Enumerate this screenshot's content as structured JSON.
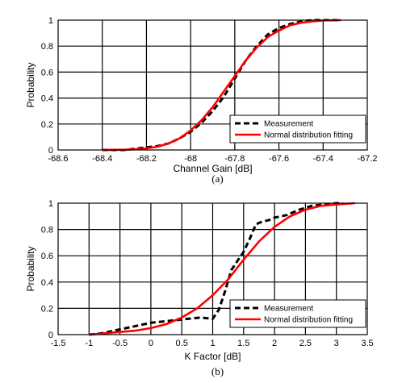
{
  "chart_data": [
    {
      "type": "line",
      "panel": "a",
      "caption": "(a)",
      "xlabel": "Channel Gain [dB]",
      "ylabel": "Probability",
      "xlim": [
        -68.6,
        -67.2
      ],
      "ylim": [
        0,
        1
      ],
      "xticks": [
        "-68.6",
        "-68.4",
        "-68.2",
        "-68",
        "-67.8",
        "-67.6",
        "-67.4",
        "-67.2"
      ],
      "xtick_values": [
        -68.6,
        -68.4,
        -68.2,
        -68.0,
        -67.8,
        -67.6,
        -67.4,
        -67.2
      ],
      "yticks": [
        "0",
        "0.2",
        "0.4",
        "0.6",
        "0.8",
        "1"
      ],
      "ytick_values": [
        0,
        0.2,
        0.4,
        0.6,
        0.8,
        1
      ],
      "grid": true,
      "legend_position": "lower-right",
      "series": [
        {
          "name": "Measurement",
          "style": "dashed",
          "color": "#000000",
          "x": [
            -68.4,
            -68.3,
            -68.25,
            -68.2,
            -68.15,
            -68.1,
            -68.05,
            -68.0,
            -67.95,
            -67.9,
            -67.85,
            -67.8,
            -67.75,
            -67.7,
            -67.65,
            -67.6,
            -67.55,
            -67.5,
            -67.45,
            -67.4,
            -67.32
          ],
          "y": [
            0,
            0.0,
            0.01,
            0.02,
            0.03,
            0.05,
            0.09,
            0.14,
            0.21,
            0.3,
            0.41,
            0.55,
            0.69,
            0.8,
            0.89,
            0.94,
            0.97,
            0.99,
            1.0,
            1.0,
            1.0
          ]
        },
        {
          "name": "Normal distribution fitting",
          "style": "solid",
          "color": "#ff0000",
          "x": [
            -68.4,
            -68.3,
            -68.25,
            -68.2,
            -68.15,
            -68.1,
            -68.05,
            -68.0,
            -67.95,
            -67.9,
            -67.85,
            -67.8,
            -67.75,
            -67.7,
            -67.65,
            -67.6,
            -67.55,
            -67.5,
            -67.45,
            -67.4,
            -67.32
          ],
          "y": [
            0.0,
            0.002,
            0.005,
            0.012,
            0.025,
            0.05,
            0.09,
            0.15,
            0.23,
            0.33,
            0.45,
            0.57,
            0.69,
            0.79,
            0.87,
            0.92,
            0.96,
            0.98,
            0.99,
            0.997,
            1.0
          ]
        }
      ]
    },
    {
      "type": "line",
      "panel": "b",
      "caption": "(b)",
      "xlabel": "K Factor [dB]",
      "ylabel": "Probability",
      "xlim": [
        -1.5,
        3.5
      ],
      "ylim": [
        0,
        1
      ],
      "xticks": [
        "-1.5",
        "-1",
        "-0.5",
        "0",
        "0.5",
        "1",
        "1.5",
        "2",
        "2.5",
        "3",
        "3.5"
      ],
      "xtick_values": [
        -1.5,
        -1,
        -0.5,
        0,
        0.5,
        1,
        1.5,
        2,
        2.5,
        3,
        3.5
      ],
      "yticks": [
        "0",
        "0.2",
        "0.4",
        "0.6",
        "0.8",
        "1"
      ],
      "ytick_values": [
        0,
        0.2,
        0.4,
        0.6,
        0.8,
        1
      ],
      "grid": true,
      "legend_position": "lower-right",
      "series": [
        {
          "name": "Measurement",
          "style": "dashed",
          "color": "#000000",
          "x": [
            -1.0,
            -0.8,
            -0.6,
            -0.4,
            -0.2,
            0.0,
            0.2,
            0.4,
            0.6,
            0.8,
            1.0,
            1.1,
            1.2,
            1.3,
            1.4,
            1.5,
            1.6,
            1.7,
            1.8,
            1.9,
            2.0,
            2.2,
            2.4,
            2.6,
            2.8,
            3.0,
            3.1
          ],
          "y": [
            0.0,
            0.01,
            0.03,
            0.05,
            0.07,
            0.09,
            0.1,
            0.11,
            0.12,
            0.13,
            0.12,
            0.19,
            0.33,
            0.49,
            0.56,
            0.63,
            0.73,
            0.84,
            0.86,
            0.87,
            0.89,
            0.91,
            0.95,
            0.98,
            0.99,
            1.0,
            1.0
          ]
        },
        {
          "name": "Normal distribution fitting",
          "style": "solid",
          "color": "#ff0000",
          "x": [
            -1.0,
            -0.75,
            -0.5,
            -0.25,
            0.0,
            0.25,
            0.5,
            0.75,
            1.0,
            1.25,
            1.5,
            1.75,
            2.0,
            2.25,
            2.5,
            2.75,
            3.0,
            3.3
          ],
          "y": [
            0.0,
            0.01,
            0.02,
            0.03,
            0.05,
            0.08,
            0.13,
            0.2,
            0.3,
            0.42,
            0.57,
            0.71,
            0.82,
            0.9,
            0.95,
            0.98,
            0.99,
            1.0
          ]
        }
      ]
    }
  ]
}
